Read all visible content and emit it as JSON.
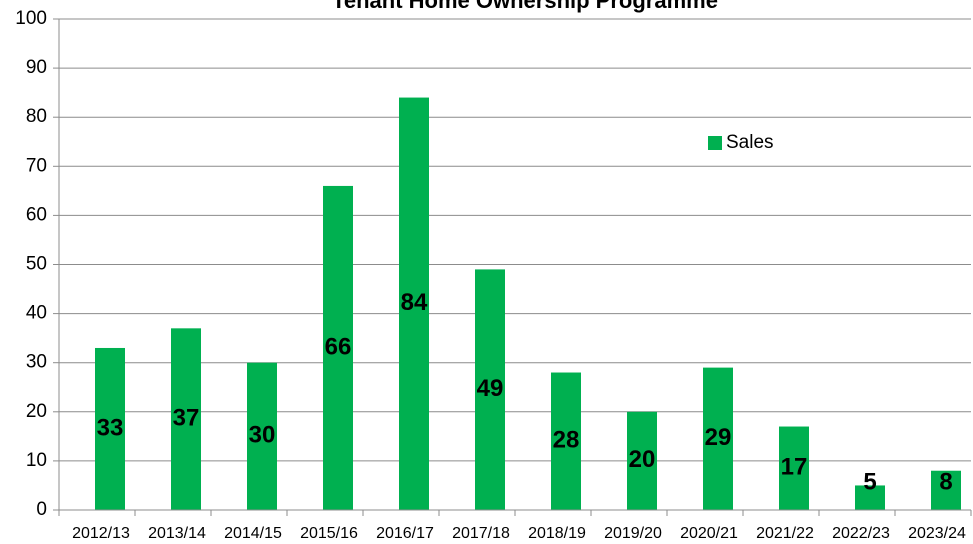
{
  "chart_data": {
    "type": "bar",
    "title": "Tenant Home Ownership Programme",
    "categories": [
      "2012/13",
      "2013/14",
      "2014/15",
      "2015/16",
      "2016/17",
      "2017/18",
      "2018/19",
      "2019/20",
      "2020/21",
      "2021/22",
      "2022/23",
      "2023/24"
    ],
    "series": [
      {
        "name": "Sales",
        "color": "#00b050",
        "values": [
          33,
          37,
          30,
          66,
          84,
          49,
          28,
          20,
          29,
          17,
          5,
          8
        ]
      }
    ],
    "ylim": [
      0,
      100
    ],
    "yticks": [
      0,
      10,
      20,
      30,
      40,
      50,
      60,
      70,
      80,
      90,
      100
    ],
    "grid": true,
    "legend": "upper right"
  }
}
